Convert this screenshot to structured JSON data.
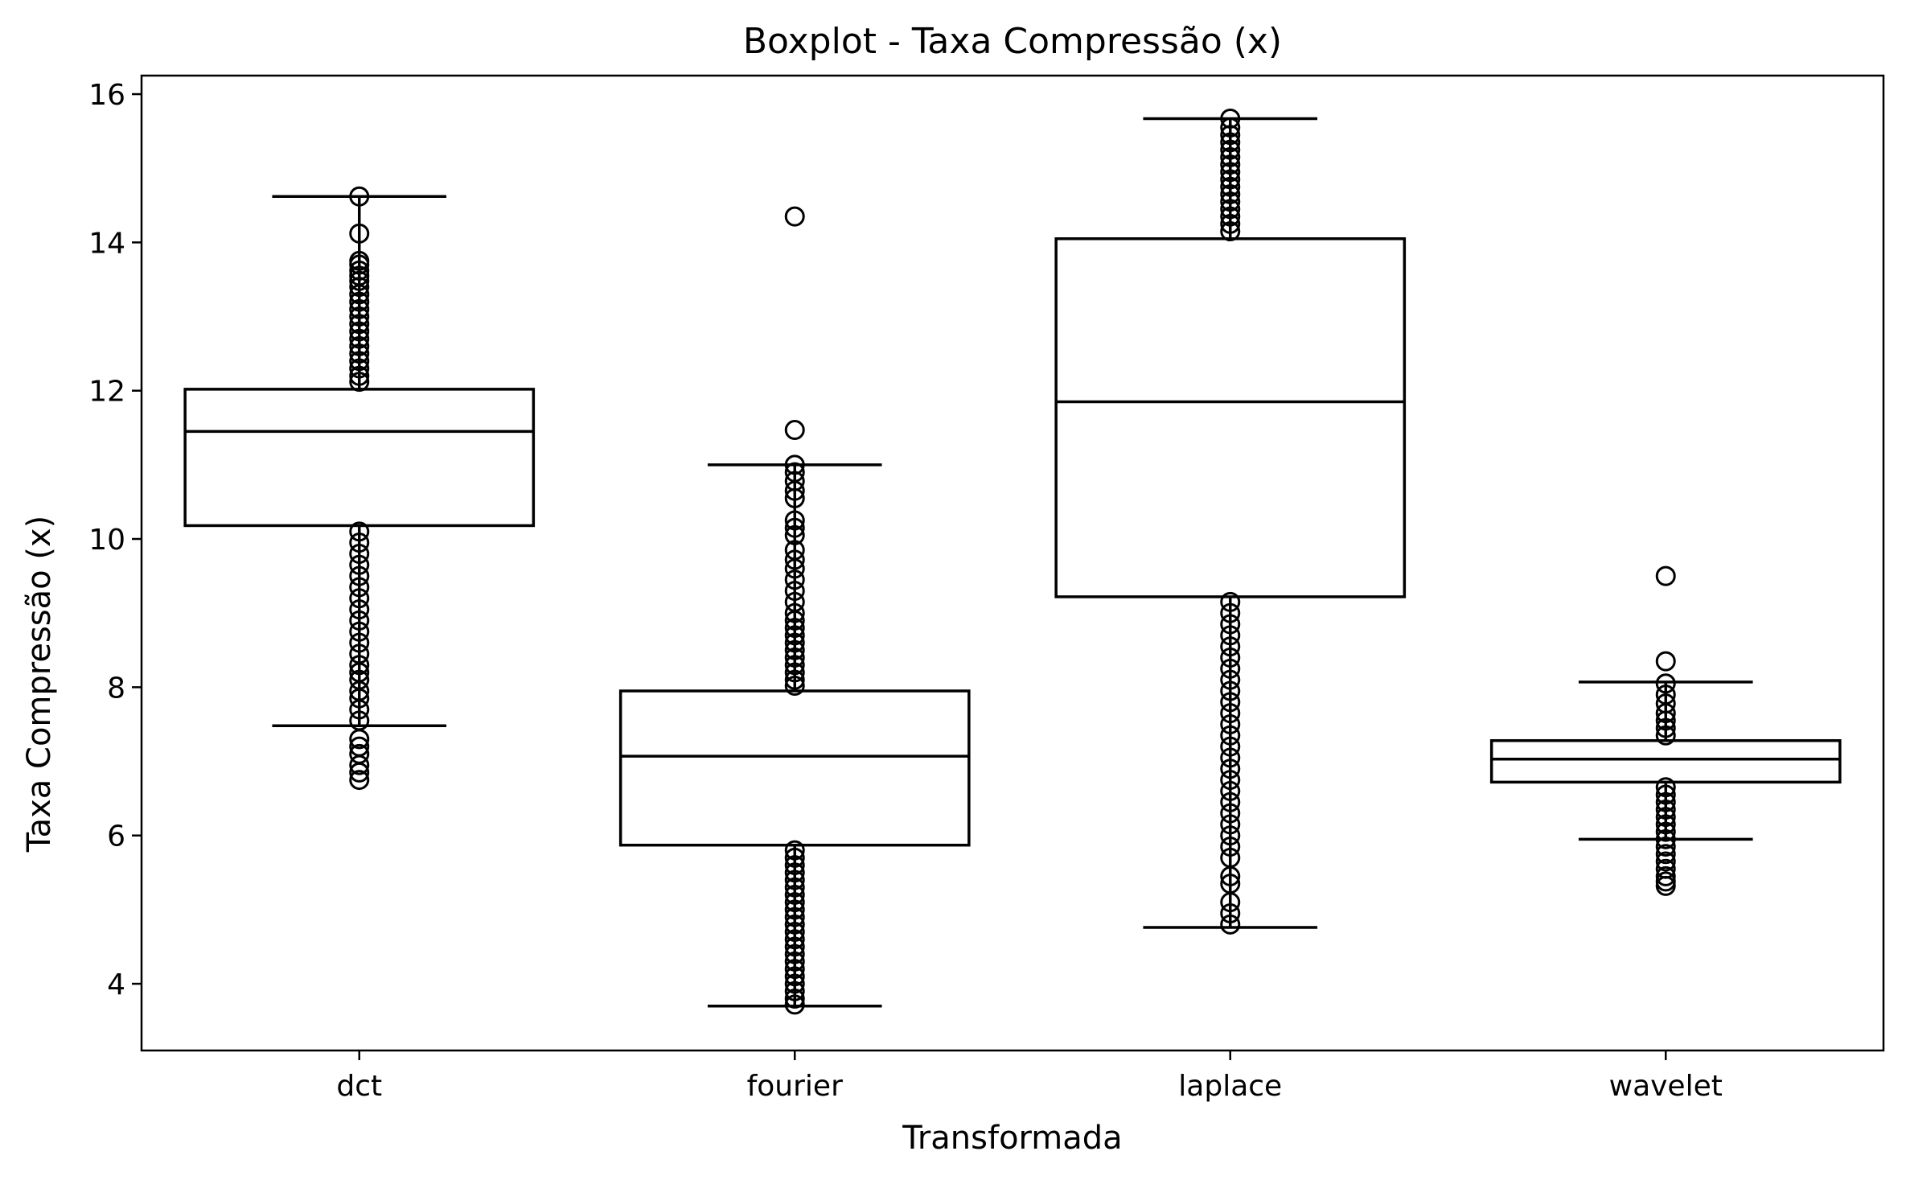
{
  "chart_data": {
    "type": "boxplot",
    "title": "Boxplot - Taxa Compressão (x)",
    "xlabel": "Transformada",
    "ylabel": "Taxa Compressão (x)",
    "ylim": [
      3.1,
      16.25
    ],
    "yticks": [
      "4",
      "6",
      "8",
      "10",
      "12",
      "14",
      "16"
    ],
    "grid": false,
    "legend": "none",
    "colors": {
      "box_fill": "#ffffff",
      "stroke": "#000000",
      "background": "#ffffff"
    },
    "categories": [
      "dct",
      "fourier",
      "laplace",
      "wavelet"
    ],
    "boxes": [
      {
        "category": "dct",
        "whisker_low": 7.48,
        "q1": 10.18,
        "median": 11.45,
        "q3": 12.02,
        "whisker_high": 14.62,
        "outliers": [
          14.62,
          14.12,
          13.75,
          13.7,
          13.62,
          13.55,
          13.48,
          13.4,
          13.3,
          13.2,
          13.1,
          13.0,
          12.9,
          12.8,
          12.7,
          12.6,
          12.5,
          12.4,
          12.3,
          12.2,
          12.12,
          10.1,
          9.95,
          9.8,
          9.65,
          9.5,
          9.35,
          9.2,
          9.05,
          8.9,
          8.75,
          8.6,
          8.45,
          8.3,
          8.2,
          8.1,
          7.95,
          7.85,
          7.7,
          7.55,
          7.3,
          7.2,
          7.1,
          6.95,
          6.85,
          6.75
        ]
      },
      {
        "category": "fourier",
        "whisker_low": 3.7,
        "q1": 5.87,
        "median": 7.07,
        "q3": 7.95,
        "whisker_high": 11.0,
        "outliers": [
          14.35,
          11.47,
          11.0,
          10.9,
          10.78,
          10.65,
          10.55,
          10.25,
          10.15,
          10.05,
          9.85,
          9.72,
          9.6,
          9.45,
          9.3,
          9.15,
          9.0,
          8.9,
          8.8,
          8.7,
          8.6,
          8.5,
          8.4,
          8.3,
          8.2,
          8.1,
          8.02,
          5.8,
          5.7,
          5.6,
          5.5,
          5.4,
          5.3,
          5.2,
          5.1,
          5.0,
          4.9,
          4.8,
          4.7,
          4.6,
          4.5,
          4.4,
          4.3,
          4.2,
          4.1,
          4.0,
          3.9,
          3.8,
          3.72
        ]
      },
      {
        "category": "laplace",
        "whisker_low": 4.76,
        "q1": 9.22,
        "median": 11.85,
        "q3": 14.05,
        "whisker_high": 15.67,
        "outliers": [
          15.67,
          15.55,
          15.45,
          15.35,
          15.25,
          15.15,
          15.05,
          14.95,
          14.85,
          14.75,
          14.65,
          14.55,
          14.45,
          14.35,
          14.25,
          14.15,
          9.15,
          9.0,
          8.85,
          8.7,
          8.55,
          8.4,
          8.25,
          8.1,
          7.95,
          7.8,
          7.65,
          7.5,
          7.35,
          7.2,
          7.05,
          6.9,
          6.75,
          6.6,
          6.45,
          6.3,
          6.15,
          6.0,
          5.85,
          5.7,
          5.45,
          5.35,
          5.1,
          4.95,
          4.8
        ]
      },
      {
        "category": "wavelet",
        "whisker_low": 5.95,
        "q1": 6.72,
        "median": 7.03,
        "q3": 7.28,
        "whisker_high": 8.07,
        "outliers": [
          9.5,
          8.35,
          8.05,
          7.9,
          7.78,
          7.65,
          7.55,
          7.45,
          7.35,
          6.65,
          6.55,
          6.45,
          6.35,
          6.25,
          6.15,
          6.05,
          5.95,
          5.85,
          5.75,
          5.65,
          5.55,
          5.45,
          5.38,
          5.32
        ]
      }
    ]
  }
}
